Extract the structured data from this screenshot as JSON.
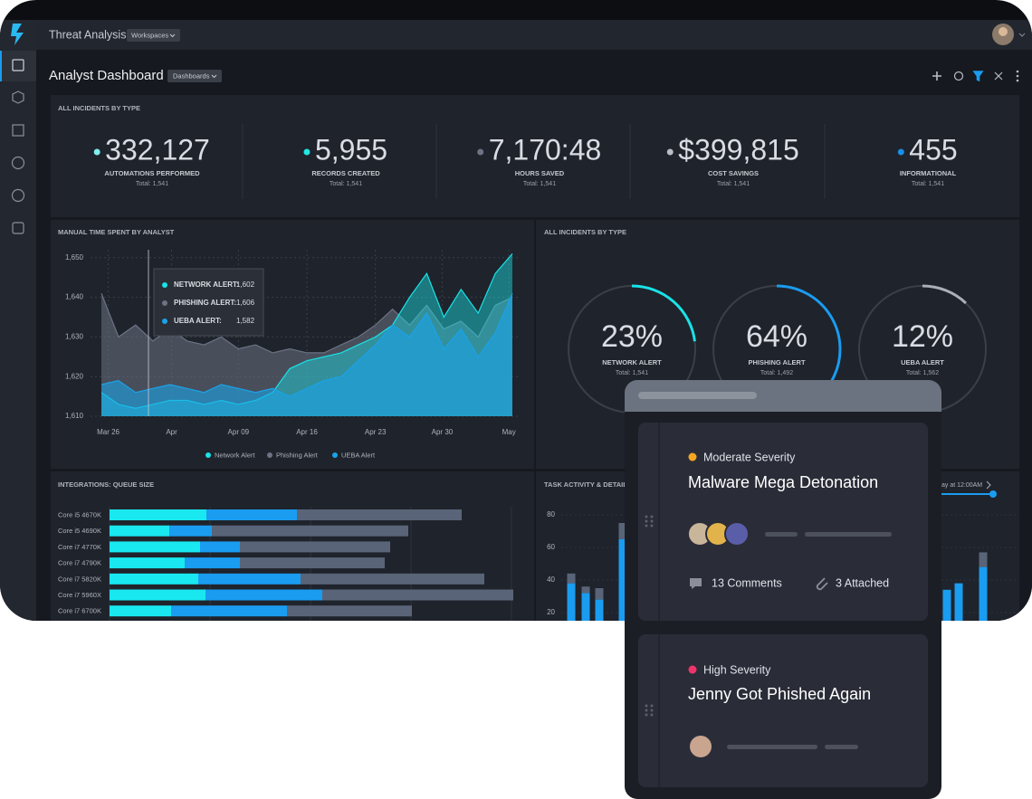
{
  "header": {
    "app_title": "Threat Analysis",
    "workspaces": "Workspaces"
  },
  "dashboard": {
    "title": "Analyst Dashboard",
    "dashboards": "Dashboards"
  },
  "kpis": {
    "title": "ALL INCIDENTS BY TYPE",
    "items": [
      {
        "value": "332,127",
        "label": "AUTOMATIONS PERFORMED",
        "total": "Total: 1,541",
        "color": "#7ff0ee"
      },
      {
        "value": "5,955",
        "label": "RECORDS CREATED",
        "total": "Total: 1,541",
        "color": "#22e6e6"
      },
      {
        "value": "7,170:48",
        "label": "HOURS SAVED",
        "total": "Total: 1,541",
        "color": "#6b7384"
      },
      {
        "value": "$399,815",
        "label": "COST SAVINGS",
        "total": "Total: 1,541",
        "color": "#b8bdc6"
      },
      {
        "value": "455",
        "label": "INFORMATIONAL",
        "total": "Total: 1,541",
        "color": "#1a8fe8"
      }
    ]
  },
  "chart_data": [
    {
      "type": "area",
      "title": "MANUAL TIME SPENT BY ANALYST",
      "x": [
        0,
        1,
        2,
        3,
        4,
        5,
        6,
        7,
        8,
        9,
        10,
        11,
        12,
        13,
        14,
        15,
        16,
        17,
        18,
        19,
        20,
        21,
        22,
        23,
        24
      ],
      "xlim": [
        0,
        24
      ],
      "xticks": [
        {
          "value": 0.4,
          "label": "Mar 26"
        },
        {
          "value": 4.1,
          "label": "Apr"
        },
        {
          "value": 8,
          "label": "Apr 09"
        },
        {
          "value": 12,
          "label": "Apr 16"
        },
        {
          "value": 16,
          "label": "Apr 23"
        },
        {
          "value": 19.9,
          "label": "Apr 30"
        },
        {
          "value": 23.8,
          "label": "May"
        }
      ],
      "ylim": [
        1610,
        1652
      ],
      "yticks": [
        {
          "value": 1610,
          "label": "1,610"
        },
        {
          "value": 1620,
          "label": "1,620"
        },
        {
          "value": 1630,
          "label": "1,630"
        },
        {
          "value": 1640,
          "label": "1,640"
        },
        {
          "value": 1650,
          "label": "1,650"
        }
      ],
      "grid": true,
      "series": [
        {
          "name": "Network Alert",
          "color": "#19e3e8",
          "values": [
            1616,
            1613,
            1612,
            1613,
            1614,
            1614,
            1613,
            1614,
            1613,
            1614,
            1616,
            1622,
            1624,
            1625,
            1626,
            1628,
            1630,
            1633,
            1640,
            1646,
            1635,
            1642,
            1636,
            1646,
            1651
          ]
        },
        {
          "name": "Phishing Alert",
          "color": "#6b7384",
          "values": [
            1641,
            1630,
            1633,
            1629,
            1632,
            1629,
            1628,
            1630,
            1627,
            1628,
            1626,
            1627,
            1626,
            1626,
            1628,
            1630,
            1633,
            1637,
            1633,
            1638,
            1632,
            1634,
            1630,
            1638,
            1640
          ]
        },
        {
          "name": "UEBA Alert",
          "color": "#1aa3e8",
          "values": [
            1618,
            1619,
            1616,
            1617,
            1618,
            1617,
            1616,
            1618,
            1617,
            1616,
            1617,
            1615,
            1617,
            1619,
            1620,
            1624,
            1628,
            1633,
            1630,
            1636,
            1627,
            1632,
            1625,
            1631,
            1641
          ]
        }
      ],
      "tooltip": [
        {
          "label": "NETWORK ALERT:",
          "value": "1,602"
        },
        {
          "label": "PHISHING ALERT:",
          "value": "1,606"
        },
        {
          "label": "UEBA ALERT:",
          "value": "1,582"
        }
      ]
    },
    {
      "type": "donut",
      "title": "ALL INCIDENTS BY TYPE",
      "categories": [
        "NETWORK ALERT",
        "PHISHING ALERT",
        "UEBA ALERT"
      ],
      "values": [
        23,
        64,
        12
      ],
      "value_labels": [
        "23%",
        "64%",
        "12%"
      ],
      "totals": [
        "Total: 1,541",
        "Total: 1,492",
        "Total: 1,562"
      ],
      "colors": [
        "#19e3e8",
        "#1a9cf0",
        "#aab0ba"
      ]
    },
    {
      "type": "hbar_stacked",
      "title": "INTEGRATIONS: QUEUE SIZE",
      "categories": [
        "Core i5 4670K",
        "Core i5 4690K",
        "Core i7 4770K",
        "Core i7 4790K",
        "Core i7 5820K",
        "Core i7 5960X",
        "Core i7 6700K"
      ],
      "xlim": [
        0,
        450
      ],
      "series": [
        {
          "color": "#19e8f0",
          "values": [
            107,
            66,
            100,
            83,
            98,
            106,
            68
          ]
        },
        {
          "color": "#1a9cf0",
          "values": [
            100,
            47,
            44,
            61,
            113,
            129,
            128
          ]
        },
        {
          "color": "#5a6478",
          "values": [
            182,
            217,
            166,
            160,
            203,
            211,
            138
          ]
        }
      ]
    },
    {
      "type": "bar_stacked",
      "title": "TASK ACTIVITY & DETAIL",
      "slider_label": "ay at 12:00AM",
      "categories": [
        null,
        null,
        null,
        null,
        null,
        null,
        null
      ],
      "ylim": [
        0,
        85
      ],
      "yticks": [
        20,
        40,
        60,
        80
      ],
      "series": [
        {
          "color": "#1a9cf0",
          "values": [
            38,
            32,
            28,
            65,
            34,
            38,
            48
          ]
        },
        {
          "color": "#5a6478",
          "values": [
            6,
            4,
            7,
            10,
            0,
            0,
            9
          ]
        }
      ]
    }
  ],
  "incident_cards": [
    {
      "severity": "Moderate Severity",
      "severity_color": "#f5a623",
      "title": "Malware Mega Detonation",
      "comments": "13 Comments",
      "attachments": "3 Attached"
    },
    {
      "severity": "High Severity",
      "severity_color": "#f0336b",
      "title": "Jenny Got Phished Again"
    }
  ]
}
